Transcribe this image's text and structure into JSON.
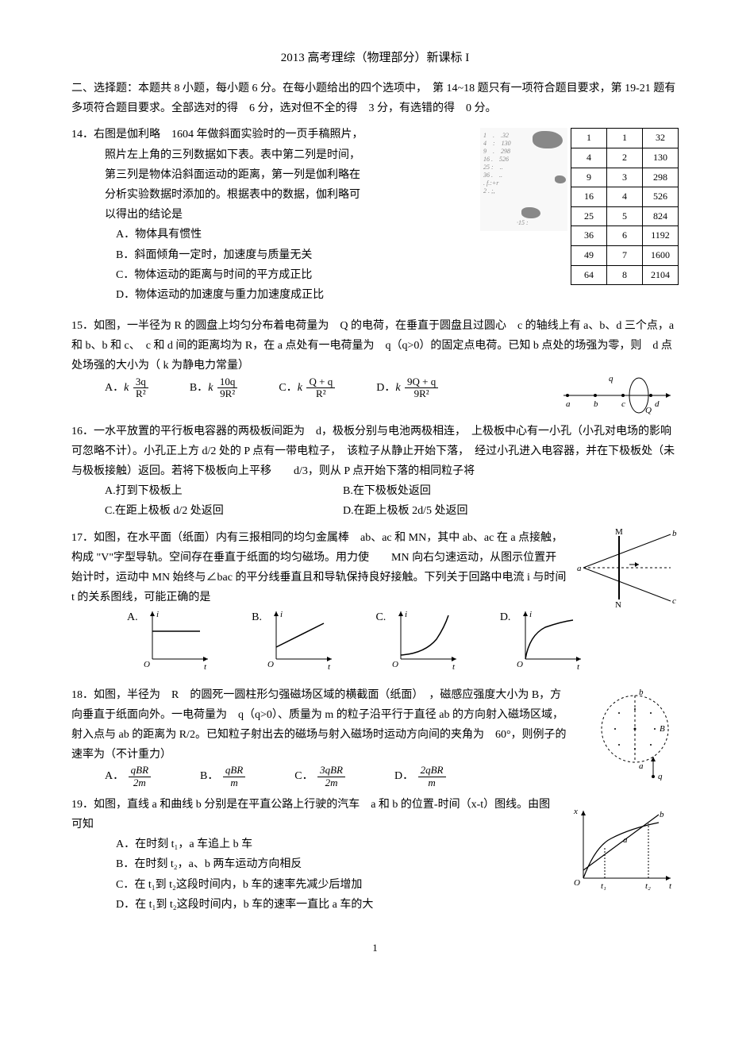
{
  "title": "2013 高考理综（物理部分）新课标 I",
  "instructions": "二、选择题：本题共 8 小题，每小题 6 分。在每小题给出的四个选项中，　第 14~18 题只有一项符合题目要求，第 19-21 题有多项符合题目要求。全部选对的得　6 分，选对但不全的得　3 分，有选错的得　0 分。",
  "q14": {
    "num": "14．",
    "stem_lines": [
      "右图是伽利略　1604 年做斜面实验时的一页手稿照片，",
      "照片左上角的三列数据如下表。表中第二列是时间，",
      "第三列是物体沿斜面运动的距离，第一列是伽利略在",
      "分析实验数据时添加的。根据表中的数据，伽利略可",
      "以得出的结论是"
    ],
    "opts": {
      "A": "A．物体具有惯性",
      "B": "B．斜面倾角一定时，加速度与质量无关",
      "C": "C．物体运动的距离与时间的平方成正比",
      "D": "D．物体运动的加速度与重力加速度成正比"
    },
    "table": {
      "rows": [
        [
          "1",
          "1",
          "32"
        ],
        [
          "4",
          "2",
          "130"
        ],
        [
          "9",
          "3",
          "298"
        ],
        [
          "16",
          "4",
          "526"
        ],
        [
          "25",
          "5",
          "824"
        ],
        [
          "36",
          "6",
          "1192"
        ],
        [
          "49",
          "7",
          "1600"
        ],
        [
          "64",
          "8",
          "2104"
        ]
      ]
    }
  },
  "q15": {
    "num": "15．",
    "stem": "如图，一半径为 R 的圆盘上均匀分布着电荷量为　Q 的电荷，在垂直于圆盘且过圆心　c 的轴线上有 a、b、d 三个点，a 和 b、b 和 c、　c 和 d 间的距离均为 R，在 a 点处有一电荷量为　q（q>0）的固定点电荷。已知 b 点处的场强为零，则　d 点处场强的大小为（ k 为静电力常量）",
    "opts": {
      "A_prefix": "A．",
      "A_k": "k",
      "A_num": "3q",
      "A_den": "R²",
      "B_prefix": "B．",
      "B_k": "k",
      "B_num": "10q",
      "B_den": "9R²",
      "C_prefix": "C．",
      "C_k": "k",
      "C_num": "Q + q",
      "C_den": "R²",
      "D_prefix": "D．",
      "D_k": "k",
      "D_num": "9Q + q",
      "D_den": "9R²"
    },
    "fig_labels": {
      "q": "q",
      "a": "a",
      "b": "b",
      "c": "c",
      "d": "d",
      "Q": "Q"
    }
  },
  "q16": {
    "num": "16．",
    "stem": "一水平放置的平行板电容器的两极板间距为　d，极板分别与电池两极相连，　上极板中心有一小孔（小孔对电场的影响可忽略不计）。小孔正上方 d/2 处的 P 点有一带电粒子，　该粒子从静止开始下落，　经过小孔进入电容器，并在下极板处（未与极板接触）返回。若将下极板向上平移　　d/3，则从 P 点开始下落的相同粒子将",
    "opts": {
      "A": "A.打到下极板上",
      "B": "B.在下极板处返回",
      "C": "C.在距上极板 d/2 处返回",
      "D": "D.在距上极板 2d/5 处返回"
    }
  },
  "q17": {
    "num": "17．",
    "stem": "如图，在水平面（纸面）内有三报相同的均匀金属棒　ab、ac 和 MN，其中 ab、ac 在 a 点接触，构成 \"V\"字型导轨。空间存在垂直于纸面的均匀磁场。用力使　　MN 向右匀速运动，从图示位置开始计时，运动中 MN 始终与∠bac 的平分线垂直且和导轨保持良好接触。下列关于回路中电流 i 与时间 t 的关系图线，可能正确的是",
    "opt_labels": {
      "A": "A.",
      "B": "B.",
      "C": "C.",
      "D": "D."
    },
    "axis_labels": {
      "i": "i",
      "t": "t",
      "O": "O"
    },
    "fig_labels": {
      "M": "M",
      "N": "N",
      "a": "a",
      "b": "b",
      "c": "c"
    }
  },
  "q18": {
    "num": "18．",
    "stem": "如图，半径为　R　的圆死一圆柱形匀强磁场区域的横截面（纸面）　，磁感应强度大小为 B，方向垂直于纸面向外。一电荷量为　q（q>0）、质量为 m 的粒子沿平行于直径 ab 的方向射入磁场区域，　射入点与 ab 的距离为 R/2。已知粒子射出去的磁场与射入磁场时运动方向间的夹角为　60°，则例子的速率为（不计重力）",
    "opts": {
      "A_prefix": "A．",
      "A_num": "qBR",
      "A_den": "2m",
      "B_prefix": "B．",
      "B_num": "qBR",
      "B_den": "m",
      "C_prefix": "C．",
      "C_num": "3qBR",
      "C_den": "2m",
      "D_prefix": "D．",
      "D_num": "2qBR",
      "D_den": "m"
    },
    "fig_labels": {
      "a": "a",
      "b": "b",
      "B": "B",
      "q": "q"
    }
  },
  "q19": {
    "num": "19．",
    "stem": "如图，直线 a 和曲线 b 分别是在平直公路上行驶的汽车　a 和 b 的位置-时间（x-t）图线。由图可知",
    "opts": {
      "A": "A．在时刻 t₁，a 车追上 b 车",
      "B": "B．在时刻 t₂，a、b 两车运动方向相反",
      "C": "C．在 t₁到 t₂这段时间内，b 车的速率先减少后增加",
      "D": "D．在 t₁到 t₂这段时间内，b 车的速率一直比 a 车的大"
    },
    "fig_labels": {
      "x": "x",
      "t": "t",
      "O": "O",
      "t1": "t₁",
      "t2": "t₂",
      "a": "a",
      "b": "b"
    }
  },
  "pagenum": "1"
}
